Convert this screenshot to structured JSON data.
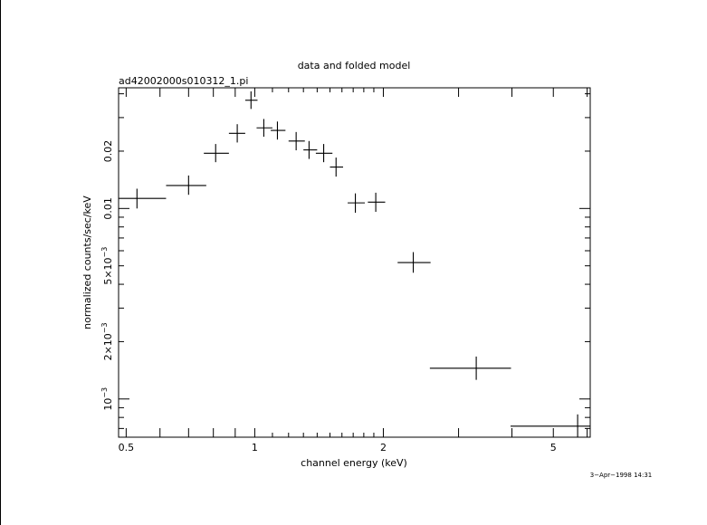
{
  "chart_data": {
    "type": "scatter",
    "title": "data and folded model",
    "subtitle": "ad42002000s010312_1.pi",
    "xlabel": "channel energy (keV)",
    "ylabel": "normalized counts/sec/keV",
    "x_scale": "log",
    "y_scale": "log",
    "xlim": [
      0.48,
      6.1
    ],
    "ylim": [
      0.00063,
      0.043
    ],
    "x_ticks": [
      {
        "value": 0.5,
        "label": "0.5"
      },
      {
        "value": 1,
        "label": "1"
      },
      {
        "value": 2,
        "label": "2"
      },
      {
        "value": 5,
        "label": "5"
      }
    ],
    "y_ticks": [
      {
        "value": 0.001,
        "base": "10",
        "exp": "−3"
      },
      {
        "value": 0.002,
        "base": "2×10",
        "exp": "−3"
      },
      {
        "value": 0.005,
        "base": "5×10",
        "exp": "−3"
      },
      {
        "value": 0.01,
        "base": "0.01",
        "exp": ""
      },
      {
        "value": 0.02,
        "base": "0.02",
        "exp": ""
      }
    ],
    "grid": false,
    "series": [
      {
        "points": [
          {
            "x": 0.53,
            "x_lo": 0.48,
            "x_hi": 0.62,
            "y": 0.0113,
            "y_lo": 0.01,
            "y_hi": 0.0127
          },
          {
            "x": 0.7,
            "x_lo": 0.62,
            "x_hi": 0.77,
            "y": 0.0132,
            "y_lo": 0.0118,
            "y_hi": 0.0149
          },
          {
            "x": 0.81,
            "x_lo": 0.76,
            "x_hi": 0.87,
            "y": 0.0195,
            "y_lo": 0.0175,
            "y_hi": 0.0218
          },
          {
            "x": 0.91,
            "x_lo": 0.87,
            "x_hi": 0.95,
            "y": 0.0248,
            "y_lo": 0.0222,
            "y_hi": 0.0277
          },
          {
            "x": 0.98,
            "x_lo": 0.95,
            "x_hi": 1.015,
            "y": 0.037,
            "y_lo": 0.0333,
            "y_hi": 0.0412
          },
          {
            "x": 1.05,
            "x_lo": 1.01,
            "x_hi": 1.1,
            "y": 0.0265,
            "y_lo": 0.0238,
            "y_hi": 0.0295
          },
          {
            "x": 1.13,
            "x_lo": 1.09,
            "x_hi": 1.18,
            "y": 0.0257,
            "y_lo": 0.023,
            "y_hi": 0.0286
          },
          {
            "x": 1.25,
            "x_lo": 1.2,
            "x_hi": 1.31,
            "y": 0.0226,
            "y_lo": 0.0202,
            "y_hi": 0.0252
          },
          {
            "x": 1.34,
            "x_lo": 1.3,
            "x_hi": 1.4,
            "y": 0.0203,
            "y_lo": 0.0182,
            "y_hi": 0.0226
          },
          {
            "x": 1.45,
            "x_lo": 1.39,
            "x_hi": 1.52,
            "y": 0.0195,
            "y_lo": 0.0175,
            "y_hi": 0.0218
          },
          {
            "x": 1.55,
            "x_lo": 1.5,
            "x_hi": 1.61,
            "y": 0.0165,
            "y_lo": 0.0147,
            "y_hi": 0.0185
          },
          {
            "x": 1.72,
            "x_lo": 1.65,
            "x_hi": 1.81,
            "y": 0.0107,
            "y_lo": 0.0095,
            "y_hi": 0.012
          },
          {
            "x": 1.92,
            "x_lo": 1.84,
            "x_hi": 2.02,
            "y": 0.0108,
            "y_lo": 0.0096,
            "y_hi": 0.0121
          },
          {
            "x": 2.35,
            "x_lo": 2.16,
            "x_hi": 2.58,
            "y": 0.0052,
            "y_lo": 0.0046,
            "y_hi": 0.0059
          },
          {
            "x": 3.3,
            "x_lo": 2.57,
            "x_hi": 3.98,
            "y": 0.00145,
            "y_lo": 0.00126,
            "y_hi": 0.00167
          },
          {
            "x": 5.7,
            "x_lo": 3.97,
            "x_hi": 6.1,
            "y": 0.00072,
            "y_lo": 0.00063,
            "y_hi": 0.00083
          }
        ]
      }
    ],
    "timestamp": "3−Apr−1998 14:31"
  }
}
